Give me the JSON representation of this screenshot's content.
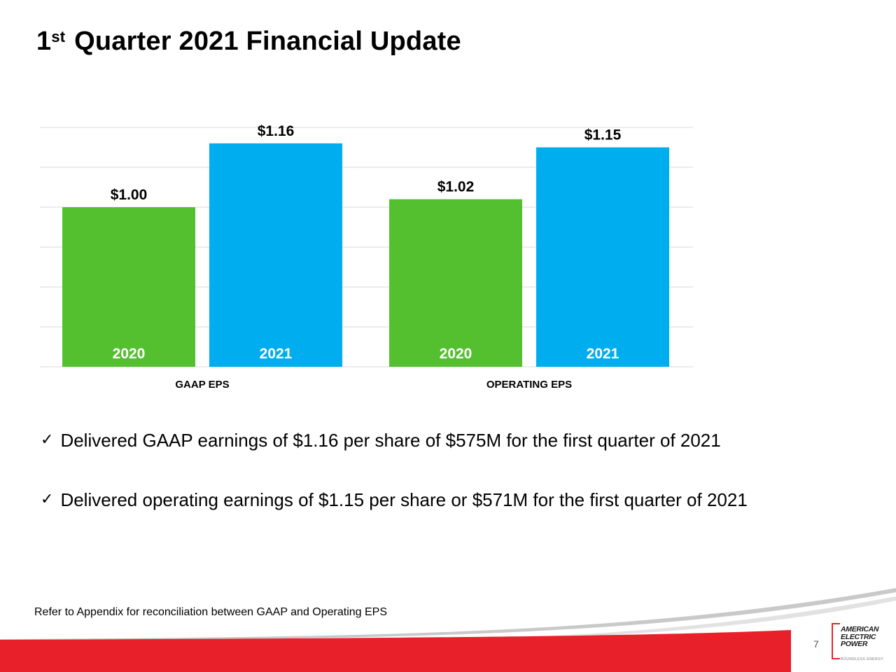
{
  "slide": {
    "title_number": "1",
    "title_suffix": "st",
    "title_rest": " Quarter 2021 Financial Update",
    "bullets": [
      "Delivered GAAP earnings of $1.16 per share of $575M for the first quarter of 2021",
      "Delivered operating earnings of $1.15 per share or $571M for the first quarter of 2021"
    ],
    "check_glyph": "✓",
    "footnote": "Refer to Appendix for reconciliation between GAAP and Operating EPS",
    "page_number": "7"
  },
  "logo": {
    "lines": [
      "AMERICAN",
      "ELECTRIC",
      "POWER"
    ],
    "tagline": "BOUNDLESS ENERGY"
  },
  "colors": {
    "green": "#54bf2f",
    "blue": "#00adef",
    "grid": "#d9d9d9",
    "red": "#e8202a"
  },
  "chart_data": {
    "type": "bar",
    "title": "",
    "xlabel": "",
    "ylabel": "",
    "ylim": [
      0.6,
      1.2
    ],
    "grid": true,
    "groups": [
      "GAAP EPS",
      "OPERATING EPS"
    ],
    "series": [
      {
        "name": "2020",
        "values": [
          1.0,
          1.02
        ],
        "labels": [
          "$1.00",
          "$1.02"
        ]
      },
      {
        "name": "2021",
        "values": [
          1.16,
          1.15
        ],
        "labels": [
          "$1.16",
          "$1.15"
        ]
      }
    ]
  }
}
